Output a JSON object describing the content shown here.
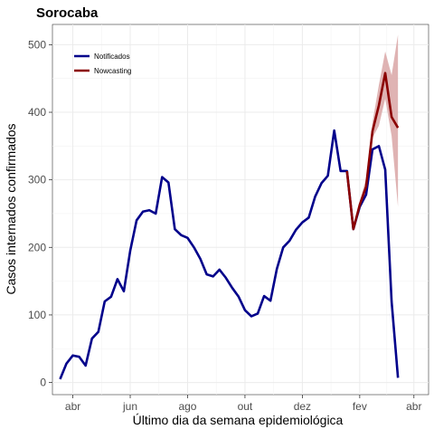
{
  "chart_data": {
    "type": "line",
    "title": "Sorocaba",
    "xlabel": "Último dia da semana epidemiológica",
    "ylabel": "Casos internados confirmados",
    "x_ticks": [
      {
        "label": "abr",
        "week": 2
      },
      {
        "label": "jun",
        "week": 11
      },
      {
        "label": "ago",
        "week": 20
      },
      {
        "label": "out",
        "week": 29
      },
      {
        "label": "dez",
        "week": 38
      },
      {
        "label": "fev",
        "week": 47
      },
      {
        "label": "abr",
        "week": 55.5
      }
    ],
    "xlim": [
      -1.2,
      57.8
    ],
    "y_ticks": [
      0,
      100,
      200,
      300,
      400,
      500
    ],
    "ylim": [
      -18,
      530
    ],
    "grid": true,
    "legend_position": "top-left",
    "series": [
      {
        "name": "Notificados",
        "color": "#00008b",
        "x": [
          0,
          1,
          2,
          3,
          4,
          5,
          6,
          7,
          8,
          9,
          10,
          11,
          12,
          13,
          14,
          15,
          16,
          17,
          18,
          19,
          20,
          21,
          22,
          23,
          24,
          25,
          26,
          27,
          28,
          29,
          30,
          31,
          32,
          33,
          34,
          35,
          36,
          37,
          38,
          39,
          40,
          41,
          42,
          43,
          44,
          45,
          46,
          47,
          48,
          49,
          50,
          51,
          52,
          53,
          54
        ],
        "y": [
          5,
          28,
          40,
          38,
          25,
          65,
          75,
          120,
          127,
          153,
          135,
          195,
          240,
          253,
          255,
          250,
          304,
          296,
          227,
          218,
          214,
          200,
          183,
          160,
          157,
          167,
          155,
          140,
          127,
          107,
          98,
          102,
          128,
          121,
          168,
          200,
          210,
          226,
          237,
          244,
          275,
          295,
          306,
          373,
          313,
          313,
          227,
          260,
          278,
          345,
          350,
          315,
          120,
          7,
          null
        ]
      },
      {
        "name": "Nowcasting",
        "color": "#8b0000",
        "x": [
          45,
          46,
          47,
          48,
          49,
          50,
          51,
          52,
          53
        ],
        "y": [
          313,
          227,
          263,
          290,
          372,
          410,
          458,
          393,
          377
        ]
      }
    ],
    "nowcasting_interval": {
      "color": "#d9a6a6",
      "x": [
        45,
        46,
        47,
        48,
        49,
        50,
        51,
        52,
        53
      ],
      "lower": [
        313,
        227,
        258,
        280,
        362,
        380,
        420,
        365,
        260
      ],
      "upper": [
        313,
        227,
        268,
        302,
        385,
        440,
        490,
        455,
        515
      ]
    }
  }
}
